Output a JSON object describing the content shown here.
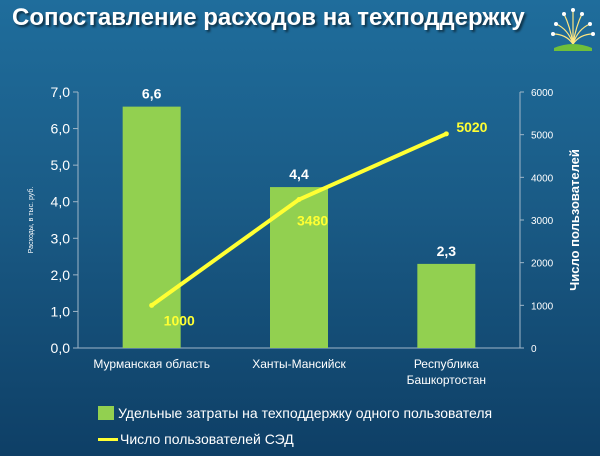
{
  "title": "Сопоставление расходов на техподдержку",
  "colors": {
    "bar": "#92d050",
    "line": "#ffff33",
    "axis": "#9fb6c8"
  },
  "chart_data": {
    "type": "bar+line",
    "categories": [
      "Мурманская область",
      "Ханты-Мансийск",
      "Республика Башкортостан"
    ],
    "category_lines": [
      [
        "Мурманская область"
      ],
      [
        "Ханты-Мансийск"
      ],
      [
        "Республика",
        "Башкортостан"
      ]
    ],
    "series": [
      {
        "name": "Удельные затраты на техподдержку одного пользователя",
        "type": "bar",
        "axis": "left",
        "values": [
          6.6,
          4.4,
          2.3
        ],
        "value_labels": [
          "6,6",
          "4,4",
          "2,3"
        ]
      },
      {
        "name": "Число пользователей СЭД",
        "type": "line",
        "axis": "right",
        "values": [
          1000,
          3480,
          5020
        ],
        "value_labels": [
          "1000",
          "3480",
          "5020"
        ]
      }
    ],
    "y_left": {
      "label": "Расходы, в тыс. руб.",
      "ylim": [
        0,
        7
      ],
      "ticks": [
        "0,0",
        "1,0",
        "2,0",
        "3,0",
        "4,0",
        "5,0",
        "6,0",
        "7,0"
      ]
    },
    "y_right": {
      "label": "Число пользователей",
      "ylim": [
        0,
        6000
      ],
      "ticks": [
        "0",
        "1000",
        "2000",
        "3000",
        "4000",
        "5000",
        "6000"
      ]
    },
    "grid": false,
    "legend_position": "bottom-left"
  }
}
